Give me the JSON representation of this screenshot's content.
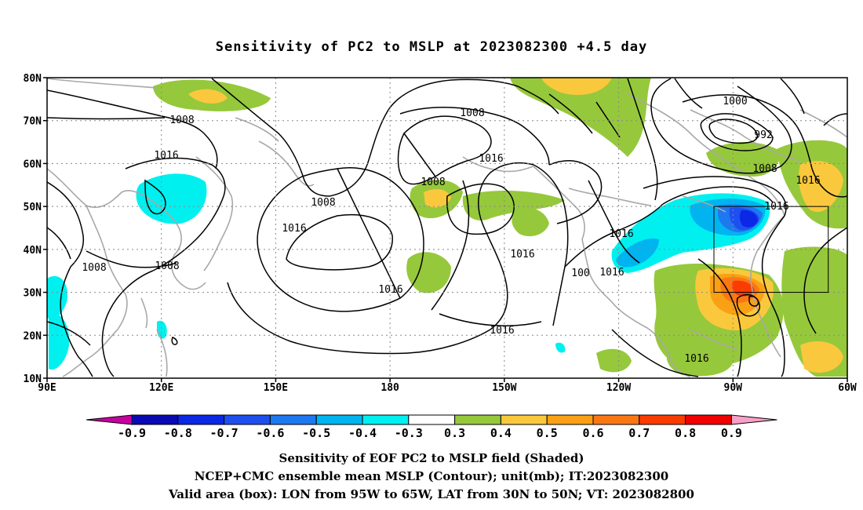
{
  "title": "Sensitivity of PC2 to MSLP at 2023082300 +4.5 day",
  "lat_labels": [
    "80N",
    "70N",
    "60N",
    "50N",
    "40N",
    "30N",
    "20N",
    "10N"
  ],
  "lon_labels": [
    "90E",
    "120E",
    "150E",
    "180",
    "150W",
    "120W",
    "90W",
    "60W"
  ],
  "contour_labels": [
    "1008",
    "1016",
    "1008",
    "1008",
    "1008",
    "1016",
    "1016",
    "1016",
    "1000",
    "992",
    "1008",
    "1016",
    "1016",
    "1016",
    "1016",
    "1016",
    "1016",
    "1008",
    "1008",
    "1016",
    "1016",
    "1008",
    "100"
  ],
  "colorbar": {
    "labels": [
      "-0.9",
      "-0.8",
      "-0.7",
      "-0.6",
      "-0.5",
      "-0.4",
      "-0.3",
      "0.3",
      "0.4",
      "0.5",
      "0.6",
      "0.7",
      "0.8",
      "0.9"
    ],
    "colors": [
      "#0a0ab4",
      "#0a28e6",
      "#1e50f0",
      "#1e78f0",
      "#00b4f0",
      "#00f0f0",
      "#ffffff",
      "#96c83c",
      "#fac83c",
      "#faa014",
      "#fa7814",
      "#fa3c00",
      "#f00000"
    ],
    "under_color": "#c800a0",
    "over_color": "#f8a0c8"
  },
  "valid_box": {
    "lon_from": -95,
    "lon_to": -65,
    "lat_from": 30,
    "lat_to": 50
  },
  "captions": [
    "Sensitivity of EOF PC2 to MSLP field (Shaded)",
    "NCEP+CMC ensemble mean MSLP (Contour); unit(mb); IT:2023082300",
    "Valid area (box): LON from 95W to 65W, LAT from 30N to 50N; VT: 2023082800"
  ]
}
